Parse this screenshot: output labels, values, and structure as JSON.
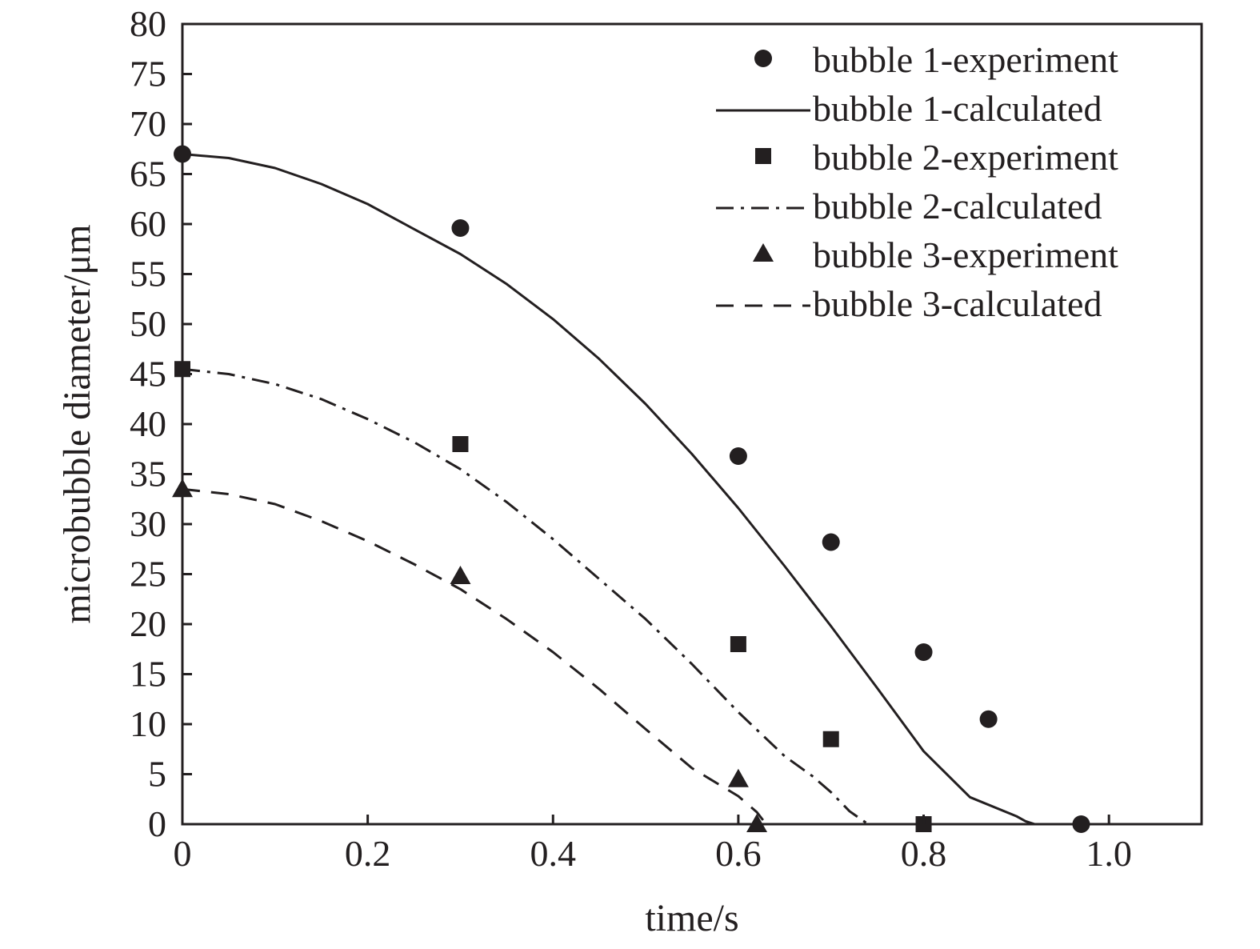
{
  "chart_data": {
    "type": "scatter",
    "title": "",
    "xlabel": "time/s",
    "ylabel": "microbubble diameter/μm",
    "xlim": [
      0,
      1.1
    ],
    "ylim": [
      0,
      80
    ],
    "x_ticks": [
      0,
      0.2,
      0.4,
      0.6,
      0.8,
      1.0
    ],
    "x_tick_labels": [
      "0",
      "0.2",
      "0.4",
      "0.6",
      "0.8",
      "1.0"
    ],
    "y_ticks": [
      0,
      5,
      10,
      15,
      20,
      25,
      30,
      35,
      40,
      45,
      50,
      55,
      60,
      65,
      70,
      75,
      80
    ],
    "y_tick_labels": [
      "0",
      "5",
      "10",
      "15",
      "20",
      "25",
      "30",
      "35",
      "40",
      "45",
      "50",
      "55",
      "60",
      "65",
      "70",
      "75",
      "80"
    ],
    "grid": false,
    "legend_position": "top-right",
    "line_color": "#231f20",
    "series": [
      {
        "name": "bubble 1-experiment",
        "kind": "markers",
        "marker": "circle",
        "x": [
          0,
          0.3,
          0.6,
          0.7,
          0.8,
          0.87,
          0.97
        ],
        "y": [
          67,
          59.6,
          36.8,
          28.2,
          17.2,
          10.5,
          0
        ]
      },
      {
        "name": "bubble 1-calculated",
        "kind": "line",
        "dash": "solid",
        "x": [
          0,
          0.05,
          0.1,
          0.15,
          0.2,
          0.25,
          0.3,
          0.35,
          0.4,
          0.45,
          0.5,
          0.55,
          0.6,
          0.65,
          0.7,
          0.75,
          0.8,
          0.85,
          0.9,
          0.91,
          0.92
        ],
        "y": [
          67,
          66.6,
          65.6,
          64,
          62,
          59.5,
          57,
          54,
          50.5,
          46.5,
          42,
          37,
          31.6,
          25.8,
          19.8,
          13.6,
          7.3,
          2.7,
          0.8,
          0.3,
          0
        ]
      },
      {
        "name": "bubble 2-experiment",
        "kind": "markers",
        "marker": "square",
        "x": [
          0,
          0.3,
          0.6,
          0.7,
          0.8
        ],
        "y": [
          45.5,
          38,
          18,
          8.5,
          0
        ]
      },
      {
        "name": "bubble 2-calculated",
        "kind": "line",
        "dash": "dash-dot",
        "x": [
          0,
          0.05,
          0.1,
          0.15,
          0.2,
          0.25,
          0.3,
          0.35,
          0.4,
          0.45,
          0.5,
          0.55,
          0.6,
          0.65,
          0.68,
          0.7,
          0.72,
          0.74
        ],
        "y": [
          45.5,
          45,
          44,
          42.5,
          40.5,
          38.2,
          35.5,
          32.2,
          28.5,
          24.5,
          20.5,
          16,
          11.2,
          6.8,
          4.8,
          3.2,
          1.3,
          0
        ]
      },
      {
        "name": "bubble 3-experiment",
        "kind": "markers",
        "marker": "triangle",
        "x": [
          0,
          0.3,
          0.6,
          0.62
        ],
        "y": [
          33.5,
          24.8,
          4.5,
          0
        ]
      },
      {
        "name": "bubble 3-calculated",
        "kind": "line",
        "dash": "dashed",
        "x": [
          0,
          0.05,
          0.1,
          0.15,
          0.2,
          0.25,
          0.3,
          0.35,
          0.4,
          0.45,
          0.5,
          0.55,
          0.6,
          0.62,
          0.63
        ],
        "y": [
          33.5,
          33,
          32,
          30.3,
          28.3,
          26,
          23.5,
          20.5,
          17.2,
          13.5,
          9.5,
          5.6,
          2.8,
          1.2,
          0
        ]
      }
    ]
  }
}
